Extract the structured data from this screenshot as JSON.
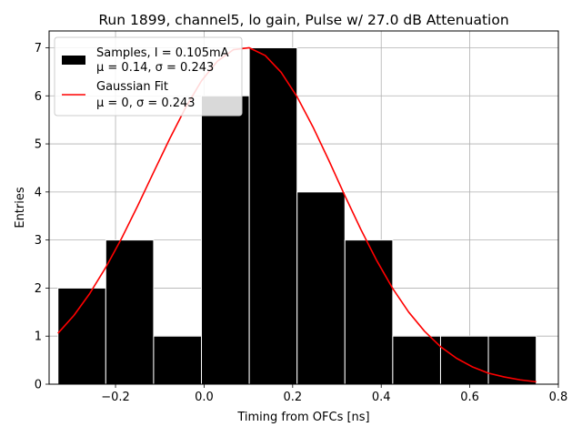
{
  "chart_data": {
    "type": "bar",
    "title": "Run 1899, channel5, lo gain, Pulse w/ 27.0 dB Attenuation",
    "xlabel": "Timing from OFCs [ns]",
    "ylabel": "Entries",
    "xlim": [
      -0.35,
      0.8
    ],
    "ylim": [
      0,
      7.35
    ],
    "xticks": [
      -0.2,
      0.0,
      0.2,
      0.4,
      0.6,
      0.8
    ],
    "xtick_labels": [
      "−0.2",
      "0.0",
      "0.2",
      "0.4",
      "0.6",
      "0.8"
    ],
    "yticks": [
      0,
      1,
      2,
      3,
      4,
      5,
      6,
      7
    ],
    "ytick_labels": [
      "0",
      "1",
      "2",
      "3",
      "4",
      "5",
      "6",
      "7"
    ],
    "grid": true,
    "legend_position": "top-left",
    "histogram": {
      "name_line1": "Samples, I = 0.105mA",
      "name_line2": "μ = 0.14, σ = 0.243",
      "color": "#000000",
      "bin_edges": [
        -0.33,
        -0.222,
        -0.114,
        -0.006,
        0.102,
        0.21,
        0.318,
        0.426,
        0.534,
        0.642,
        0.75
      ],
      "counts": [
        2,
        3,
        1,
        6,
        7,
        4,
        3,
        1,
        1,
        1
      ]
    },
    "fit": {
      "name_line1": "Gaussian Fit",
      "name_line2": "μ = 0, σ = 0.243",
      "color": "#ff0000",
      "x": [
        -0.33,
        -0.294,
        -0.258,
        -0.222,
        -0.186,
        -0.15,
        -0.114,
        -0.078,
        -0.042,
        -0.006,
        0.03,
        0.066,
        0.102,
        0.138,
        0.174,
        0.21,
        0.246,
        0.282,
        0.318,
        0.354,
        0.39,
        0.426,
        0.462,
        0.498,
        0.534,
        0.57,
        0.606,
        0.642,
        0.678,
        0.714,
        0.75
      ],
      "y": [
        1.06,
        1.43,
        1.89,
        2.43,
        3.04,
        3.71,
        4.41,
        5.1,
        5.75,
        6.31,
        6.72,
        6.96,
        7.0,
        6.84,
        6.49,
        5.98,
        5.35,
        4.65,
        3.92,
        3.22,
        2.57,
        1.99,
        1.5,
        1.1,
        0.78,
        0.54,
        0.36,
        0.23,
        0.15,
        0.09,
        0.05
      ]
    }
  }
}
